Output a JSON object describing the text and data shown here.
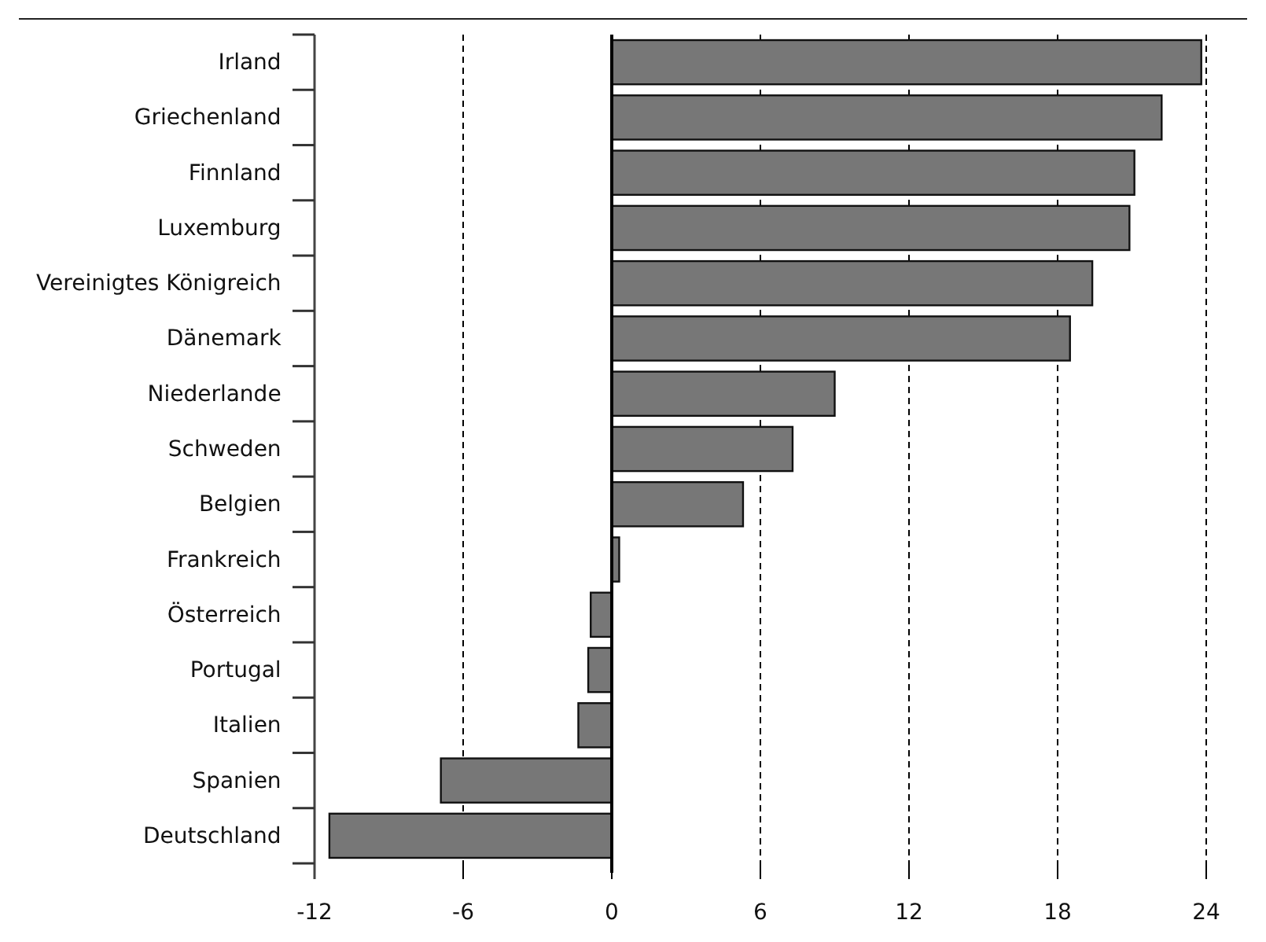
{
  "chart_data": {
    "type": "bar",
    "orientation": "horizontal",
    "categories": [
      "Irland",
      "Griechenland",
      "Finnland",
      "Luxemburg",
      "Vereinigtes Königreich",
      "Dänemark",
      "Niederlande",
      "Schweden",
      "Belgien",
      "Frankreich",
      "Österreich",
      "Portugal",
      "Italien",
      "Spanien",
      "Deutschland"
    ],
    "values": [
      23.8,
      22.2,
      21.1,
      20.9,
      19.4,
      18.5,
      9.0,
      7.3,
      5.3,
      0.3,
      -0.85,
      -0.95,
      -1.35,
      -6.9,
      -11.4
    ],
    "color": "#777777",
    "xlim": [
      -12,
      24
    ],
    "xticks": [
      -12,
      -6,
      0,
      6,
      12,
      18,
      24
    ],
    "grid": "x"
  }
}
